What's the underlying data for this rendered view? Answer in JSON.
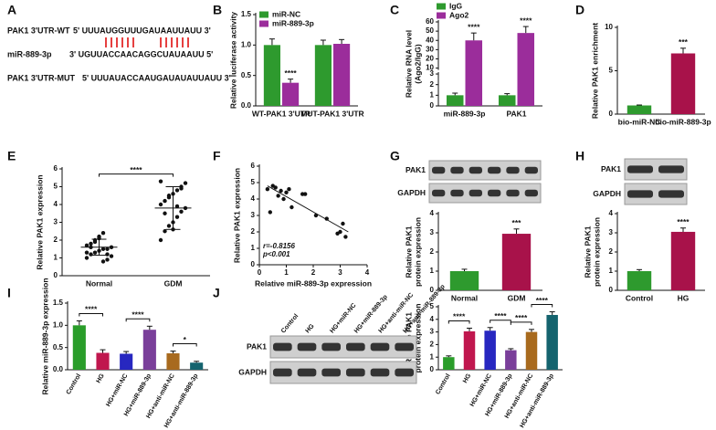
{
  "panel_labels": [
    "A",
    "B",
    "C",
    "D",
    "E",
    "F",
    "G",
    "H",
    "I",
    "J"
  ],
  "sequence_panel": {
    "rows": [
      {
        "label": "PAK1 3'UTR-WT",
        "sequence": "5' UUUAUGGUUUGAUAAUUAUU 3'"
      },
      {
        "label": "miR-889-3p",
        "sequence": "3' UGUUACCAACAGGCUAUAAUU 5'"
      },
      {
        "label": "PAK1 3'UTR-MUT",
        "sequence": "5' UUUAUACCAAUGAUAUAUUAUU 3'"
      }
    ]
  },
  "chart_data": [
    {
      "type": "bar",
      "ylabel": "Relative luciferase activity",
      "categories": [
        "WT-PAK1 3'UTR",
        "MUT-PAK1 3'UTR"
      ],
      "series": [
        {
          "name": "miR-NC",
          "color": "#2e9a2e",
          "values": [
            1.0,
            1.0
          ],
          "errors": [
            0.1,
            0.08
          ]
        },
        {
          "name": "miR-889-3p",
          "color": "#9b2d9b",
          "values": [
            0.38,
            1.02
          ],
          "errors": [
            0.06,
            0.07
          ],
          "stars": [
            "****",
            null
          ]
        }
      ],
      "ylim": [
        0,
        1.5
      ],
      "yticks": [
        {
          "value": 0,
          "label": "0.0"
        },
        0.5,
        {
          "value": 1,
          "label": "1.0"
        },
        1.5
      ]
    },
    {
      "type": "bar",
      "ylabel": [
        "Relative RNA level",
        "(Ago2/IgG)"
      ],
      "categories": [
        "miR-889-3p",
        "PAK1"
      ],
      "series": [
        {
          "name": "IgG",
          "color": "#2e9a2e",
          "values": [
            1.0,
            1.0
          ],
          "errors": [
            0.2,
            0.15
          ]
        },
        {
          "name": "Ago2",
          "color": "#9b2d9b",
          "values": [
            40,
            48
          ],
          "errors": [
            8,
            7
          ],
          "stars": [
            "****",
            "****"
          ]
        }
      ],
      "ylim": [
        0,
        60
      ],
      "ybreak": [
        3,
        10
      ],
      "yticks": [
        0,
        1,
        2,
        3,
        10,
        20,
        30,
        40,
        50,
        60
      ]
    },
    {
      "type": "bar",
      "ylabel": "Relative PAK1 enrichment",
      "categories": [
        "bio-miR-NC",
        "bio-miR-889-3p"
      ],
      "values": [
        1.0,
        7.0
      ],
      "errors": [
        0.05,
        0.6
      ],
      "colors": [
        "#2e9a2e",
        "#a8124a"
      ],
      "stars": [
        null,
        "***"
      ],
      "ylim": [
        0,
        10
      ],
      "yticks": [
        0,
        5,
        10
      ]
    },
    {
      "type": "strip",
      "ylabel": "Relative PAK1 expression",
      "categories": [
        "Normal",
        "GDM"
      ],
      "values": [
        [
          1.0,
          1.2,
          1.3,
          1.4,
          1.5,
          1.5,
          1.6,
          1.7,
          1.8,
          2.0,
          2.2,
          2.4,
          0.9,
          1.1,
          1.3,
          1.6,
          1.9,
          2.1,
          0.8,
          1.2
        ],
        [
          2.0,
          2.5,
          2.8,
          3.0,
          3.3,
          3.6,
          3.8,
          4.0,
          4.2,
          4.4,
          4.6,
          4.8,
          5.0,
          5.2,
          5.3,
          3.5,
          4.5,
          2.6,
          3.9,
          4.9
        ]
      ],
      "means": [
        1.6,
        3.8
      ],
      "sd": [
        0.45,
        1.2
      ],
      "brackets": [
        {
          "from": 0,
          "to": 1,
          "label": "****"
        }
      ],
      "ylim": [
        0,
        6
      ],
      "yticks": [
        0,
        1,
        2,
        3,
        4,
        5,
        6
      ]
    },
    {
      "type": "scatter",
      "xlabel": "Relative miR-889-3p expression",
      "ylabel": "Relative PAK1 expression",
      "x": [
        0.3,
        0.4,
        0.5,
        0.6,
        0.7,
        0.8,
        0.9,
        1.0,
        1.1,
        1.2,
        1.6,
        1.7,
        2.1,
        2.5,
        2.9,
        3.0,
        3.1,
        3.2
      ],
      "y": [
        4.6,
        3.2,
        4.8,
        4.7,
        4.2,
        4.5,
        4.0,
        4.4,
        4.6,
        3.5,
        4.3,
        4.3,
        3.0,
        2.8,
        1.9,
        2.0,
        2.5,
        1.7
      ],
      "trendline": {
        "x": [
          0.3,
          3.3
        ],
        "y": [
          4.8,
          2.0
        ]
      },
      "annotations": [
        "r=-0.8156",
        "p<0.001"
      ],
      "xlim": [
        0,
        4
      ],
      "xticks": [
        0,
        1,
        2,
        3,
        4
      ],
      "ylim": [
        0,
        6
      ],
      "yticks": [
        0,
        1,
        2,
        3,
        4,
        5,
        6
      ]
    },
    {
      "type": "bar",
      "blot_rows": [
        "PAK1",
        "GAPDH"
      ],
      "ylabel": [
        "Relative PAK1",
        "protein expression"
      ],
      "categories": [
        "Normal",
        "GDM"
      ],
      "values": [
        1.0,
        2.95
      ],
      "errors": [
        0.1,
        0.25
      ],
      "colors": [
        "#2e9a2e",
        "#a8124a"
      ],
      "stars": [
        null,
        "***"
      ],
      "ylim": [
        0,
        4
      ],
      "yticks": [
        0,
        1,
        2,
        3,
        4
      ]
    },
    {
      "type": "bar",
      "blot_rows": [
        "PAK1",
        "GAPDH"
      ],
      "ylabel": [
        "Relative PAK1",
        "protein expression"
      ],
      "categories": [
        "Control",
        "HG"
      ],
      "values": [
        1.0,
        3.05
      ],
      "errors": [
        0.08,
        0.2
      ],
      "colors": [
        "#2e9a2e",
        "#a8124a"
      ],
      "stars": [
        null,
        "****"
      ],
      "ylim": [
        0,
        4
      ],
      "yticks": [
        0,
        1,
        2,
        3,
        4
      ]
    },
    {
      "type": "bar",
      "ylabel": "Relative miR-889-3p expression",
      "categories": [
        "Control",
        "HG",
        "HG+miR-NC",
        "HG+miR-889-3p",
        "HG+anti-miR-NC",
        "HG+anti-miR-889-3p"
      ],
      "values": [
        1.0,
        0.38,
        0.36,
        0.9,
        0.37,
        0.16
      ],
      "errors": [
        0.1,
        0.07,
        0.05,
        0.08,
        0.05,
        0.03
      ],
      "colors": [
        "#2a9d2a",
        "#c0174e",
        "#2727c0",
        "#7a3f9a",
        "#a86a1e",
        "#14636e"
      ],
      "brackets": [
        {
          "from": 0,
          "to": 1,
          "label": "****"
        },
        {
          "from": 2,
          "to": 3,
          "label": "****"
        },
        {
          "from": 4,
          "to": 5,
          "label": "*"
        }
      ],
      "ylim": [
        0,
        1.5
      ],
      "yticks": [
        {
          "value": 0,
          "label": "0.0"
        },
        0.5,
        {
          "value": 1,
          "label": "1.0"
        },
        1.5
      ]
    },
    {
      "type": "bar",
      "blot_rows": [
        "PAK1",
        "GAPDH"
      ],
      "ylabel": [
        "Relative PAK1",
        "protein expression"
      ],
      "categories": [
        "Control",
        "HG",
        "HG+miR-NC",
        "HG+miR-889-3p",
        "HG+anti-miR-NC",
        "HG+anti-miR-889-3p"
      ],
      "values": [
        1.0,
        3.05,
        3.1,
        1.55,
        3.0,
        4.35
      ],
      "errors": [
        0.1,
        0.25,
        0.25,
        0.12,
        0.2,
        0.25
      ],
      "colors": [
        "#2a9d2a",
        "#c0174e",
        "#2727c0",
        "#7a3f9a",
        "#a86a1e",
        "#14636e"
      ],
      "brackets": [
        {
          "from": 0,
          "to": 1,
          "label": "****"
        },
        {
          "from": 2,
          "to": 3,
          "label": "****"
        },
        {
          "from": 3,
          "to": 4,
          "label": "****"
        },
        {
          "from": 4,
          "to": 5,
          "label": "****"
        }
      ],
      "ylim": [
        0,
        5
      ],
      "yticks": [
        0,
        1,
        2,
        3,
        4,
        5
      ]
    }
  ]
}
